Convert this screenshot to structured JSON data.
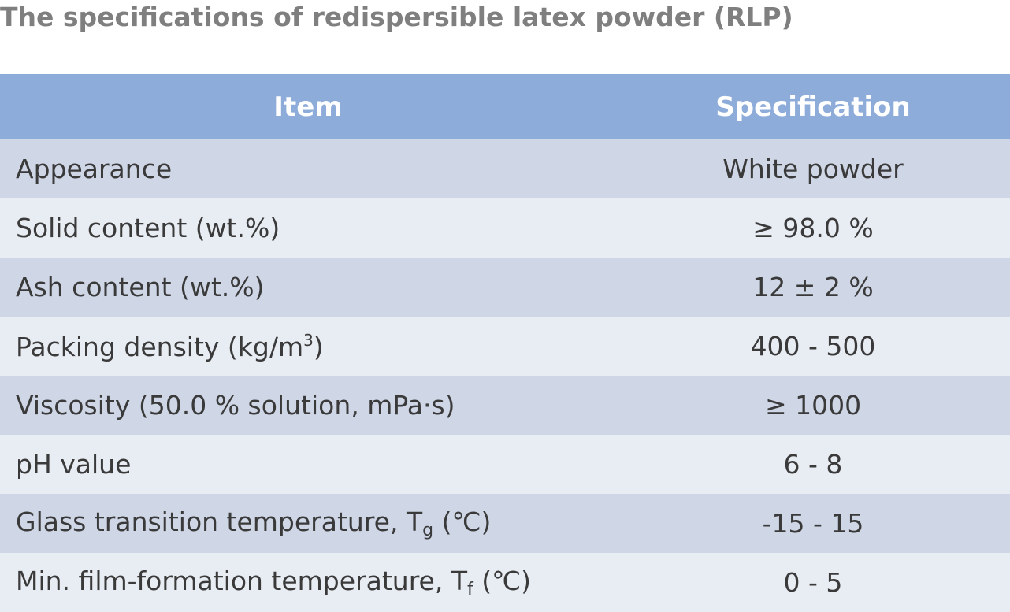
{
  "title": "The specifications of redispersible latex powder (RLP)",
  "table": {
    "headers": [
      "Item",
      "Specification"
    ],
    "rows": [
      {
        "item": "Appearance",
        "spec": "White powder"
      },
      {
        "item": "Solid content (wt.%)",
        "spec": "≥ 98.0 %"
      },
      {
        "item": "Ash content (wt.%)",
        "spec": "12 ± 2 %"
      },
      {
        "item_main": "Packing density (kg/m",
        "item_sup": "3",
        "item_tail": ")",
        "spec": "400 - 500"
      },
      {
        "item": "Viscosity (50.0 % solution, mPa·s)",
        "spec": "≥ 1000"
      },
      {
        "item": "pH value",
        "spec": "6 - 8"
      },
      {
        "item_main": "Glass transition temperature, T",
        "item_sub": "g",
        "item_tail": " (℃)",
        "spec": "-15 - 15"
      },
      {
        "item_main": "Min. film-formation temperature, T",
        "item_sub": "f",
        "item_tail": " (℃)",
        "spec": "0 - 5"
      }
    ]
  }
}
